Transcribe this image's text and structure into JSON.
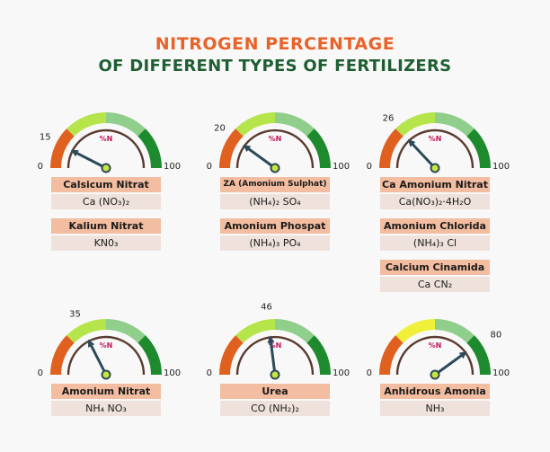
{
  "title_line1": "NITROGEN PERCENTAGE",
  "title_line2": "OF DIFFERENT TYPES OF FERTILIZERS",
  "gauge_unit": "%N",
  "scale_min_label": "0",
  "scale_max_label": "100",
  "colors": {
    "title1": "#e8632a",
    "title2": "#1f5e32",
    "seg_low": "#e0601f",
    "seg_mid": "#b5e54a",
    "seg_midhigh": "#8fce8b",
    "seg_high": "#1e8a2e",
    "needle": "#2c4a5a",
    "hub": "#c8e63c"
  },
  "chart_data": {
    "type": "gauge",
    "title": "NITROGEN PERCENTAGE OF DIFFERENT TYPES OF FERTILIZERS",
    "unit": "%N",
    "range": [
      0,
      100
    ],
    "gauges": [
      {
        "value": 15,
        "value_label": "15",
        "highlight_color": "#b5e54a",
        "fertilizers": [
          {
            "name": "Calsicum Nitrat",
            "formula": "Ca (NO₃)₂"
          },
          {
            "name": "Kalium Nitrat",
            "formula": "KN0₃"
          }
        ]
      },
      {
        "value": 20,
        "value_label": "20",
        "highlight_color": "#b5e54a",
        "fertilizers": [
          {
            "name": "ZA (Amonium Sulphat)",
            "formula": "(NH₄)₂ SO₄"
          },
          {
            "name": "Amonium Phospat",
            "formula": "(NH₄)₃ PO₄"
          }
        ]
      },
      {
        "value": 26,
        "value_label": "26",
        "highlight_color": "#b5e54a",
        "fertilizers": [
          {
            "name": "Ca Amonium Nitrat",
            "formula": "Ca(NO₃)₂·4H₂O"
          },
          {
            "name": "Amonium Chlorida",
            "formula": "(NH₄)₃ Cl"
          },
          {
            "name": "Calcium Cinamida",
            "formula": "Ca CN₂"
          }
        ]
      },
      {
        "value": 35,
        "value_label": "35",
        "highlight_color": "#b5e54a",
        "fertilizers": [
          {
            "name": "Amonium Nitrat",
            "formula": "NH₄ NO₃"
          }
        ]
      },
      {
        "value": 46,
        "value_label": "46",
        "highlight_color": "#b5e54a",
        "fertilizers": [
          {
            "name": "Urea",
            "formula": "CO (NH₂)₂"
          }
        ]
      },
      {
        "value": 80,
        "value_label": "80",
        "highlight_color": "#f0ef3a",
        "fertilizers": [
          {
            "name": "Anhidrous Amonia",
            "formula": "NH₃"
          }
        ]
      }
    ]
  }
}
